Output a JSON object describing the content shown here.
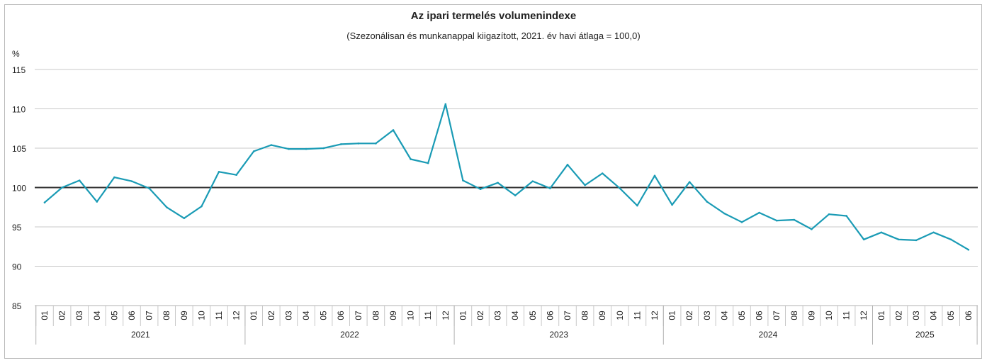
{
  "chart_data": {
    "type": "line",
    "title": "Az ipari termelés volumenindexe",
    "subtitle": "(Szezonálisan és munkanappal kiigazított, 2021. év havi átlaga = 100,0)",
    "ylabel": "%",
    "ylim": [
      85,
      115
    ],
    "yticks": [
      85,
      90,
      95,
      100,
      105,
      110,
      115
    ],
    "reference_line": 100,
    "grid": true,
    "colors": {
      "series": "#1a9bb5",
      "reference": "#333333",
      "grid": "#c8c8c8"
    },
    "years": [
      "2021",
      "2022",
      "2023",
      "2024",
      "2025"
    ],
    "months_per_year": [
      12,
      12,
      12,
      12,
      6
    ],
    "categories": [
      "01",
      "02",
      "03",
      "04",
      "05",
      "06",
      "07",
      "08",
      "09",
      "10",
      "11",
      "12",
      "01",
      "02",
      "03",
      "04",
      "05",
      "06",
      "07",
      "08",
      "09",
      "10",
      "11",
      "12",
      "01",
      "02",
      "03",
      "04",
      "05",
      "06",
      "07",
      "08",
      "09",
      "10",
      "11",
      "12",
      "01",
      "02",
      "03",
      "04",
      "05",
      "06",
      "07",
      "08",
      "09",
      "10",
      "11",
      "12",
      "01",
      "02",
      "03",
      "04",
      "05",
      "06"
    ],
    "series": [
      {
        "values": [
          98.1,
          100.0,
          100.9,
          98.2,
          101.3,
          100.8,
          99.9,
          97.5,
          96.1,
          97.6,
          102.0,
          101.6,
          104.6,
          105.4,
          104.9,
          104.9,
          105.0,
          105.5,
          105.6,
          105.6,
          107.3,
          103.6,
          103.1,
          110.6,
          100.9,
          99.8,
          100.6,
          99.0,
          100.8,
          99.9,
          102.9,
          100.3,
          101.8,
          99.9,
          97.7,
          101.5,
          97.8,
          100.7,
          98.2,
          96.7,
          95.6,
          96.8,
          95.8,
          95.9,
          94.7,
          96.6,
          96.4,
          93.4,
          94.3,
          93.4,
          93.3,
          94.3,
          93.4,
          92.1
        ]
      }
    ]
  }
}
